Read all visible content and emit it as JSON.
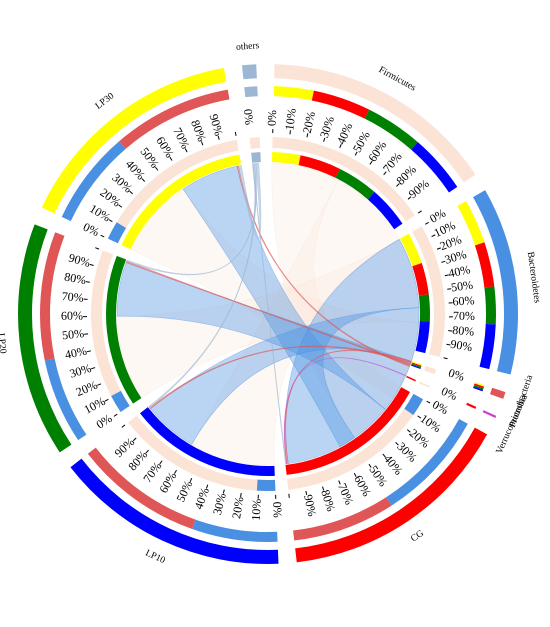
{
  "chart_data": {
    "type": "chord",
    "title": "",
    "groups": [
      {
        "name": "Firmicutes",
        "kind": "taxon",
        "value": 100,
        "band": [
          "#ffff00",
          "#ff0000",
          "#008000",
          "#0000ff"
        ],
        "band_split": [
          0.185,
          0.455,
          0.725,
          1.0
        ]
      },
      {
        "name": "Bacteroidetes",
        "kind": "taxon",
        "value": 80,
        "band": [
          "#ffff00",
          "#ff0000",
          "#008000",
          "#0000ff"
        ],
        "band_split": [
          0.26,
          0.52,
          0.74,
          1.0
        ]
      },
      {
        "name": "Proteobacteria",
        "kind": "taxon",
        "value": 3,
        "band": [
          "#ffff00",
          "#ff0000",
          "#008000",
          "#0000ff"
        ],
        "band_split": [
          0.25,
          0.5,
          0.75,
          1.0
        ]
      },
      {
        "name": "Verrucomicrobia",
        "kind": "taxon",
        "value": 1,
        "band": [
          "#ff0000"
        ],
        "band_split": [
          1.0
        ]
      },
      {
        "name": "CG",
        "kind": "sample",
        "value": 100,
        "band": [
          "#4a90e2",
          "#e05555"
        ],
        "band_split": [
          0.52,
          1.0
        ]
      },
      {
        "name": "LP10",
        "kind": "sample",
        "value": 100,
        "band": [
          "#4a90e2",
          "#e05555"
        ],
        "band_split": [
          0.4,
          1.0
        ]
      },
      {
        "name": "LP20",
        "kind": "sample",
        "value": 100,
        "band": [
          "#4a90e2",
          "#e05555"
        ],
        "band_split": [
          0.4,
          1.0
        ]
      },
      {
        "name": "LP30",
        "kind": "sample",
        "value": 100,
        "band": [
          "#4a90e2",
          "#e05555"
        ],
        "band_split": [
          0.44,
          1.0
        ]
      },
      {
        "name": "others",
        "kind": "taxon",
        "value": 6,
        "band": [
          "#9bb7d4"
        ],
        "band_split": [
          1.0
        ]
      }
    ],
    "sample_colors": {
      "CG": "#ff0000",
      "LP10": "#0000ff",
      "LP20": "#008000",
      "LP30": "#ffff00"
    },
    "taxon_colors": {
      "Firmicutes": "#fbe3d6",
      "Bacteroidetes": "#4a90e2",
      "Proteobacteria": "#e05555",
      "Verrucomicrobia": "#cc44cc",
      "others": "#9bb7d4"
    },
    "links": [
      {
        "from": "CG",
        "to": "Firmicutes",
        "value": 48
      },
      {
        "from": "LP10",
        "to": "Firmicutes",
        "value": 60
      },
      {
        "from": "LP20",
        "to": "Firmicutes",
        "value": 60
      },
      {
        "from": "LP30",
        "to": "Firmicutes",
        "value": 56
      },
      {
        "from": "CG",
        "to": "Bacteroidetes",
        "value": 50
      },
      {
        "from": "LP10",
        "to": "Bacteroidetes",
        "value": 38
      },
      {
        "from": "LP20",
        "to": "Bacteroidetes",
        "value": 38
      },
      {
        "from": "LP30",
        "to": "Bacteroidetes",
        "value": 41
      },
      {
        "from": "CG",
        "to": "Proteobacteria",
        "value": 1
      },
      {
        "from": "LP10",
        "to": "Proteobacteria",
        "value": 1
      },
      {
        "from": "LP20",
        "to": "Proteobacteria",
        "value": 1
      },
      {
        "from": "LP30",
        "to": "Proteobacteria",
        "value": 1
      },
      {
        "from": "CG",
        "to": "Verrucomicrobia",
        "value": 0.4
      },
      {
        "from": "CG",
        "to": "others",
        "value": 0.6
      },
      {
        "from": "LP10",
        "to": "others",
        "value": 1
      },
      {
        "from": "LP20",
        "to": "others",
        "value": 1
      },
      {
        "from": "LP30",
        "to": "others",
        "value": 2
      }
    ],
    "tick_labels": [
      "0%",
      "10%",
      "20%",
      "30%",
      "40%",
      "50%",
      "60%",
      "70%",
      "80%",
      "90%"
    ]
  }
}
